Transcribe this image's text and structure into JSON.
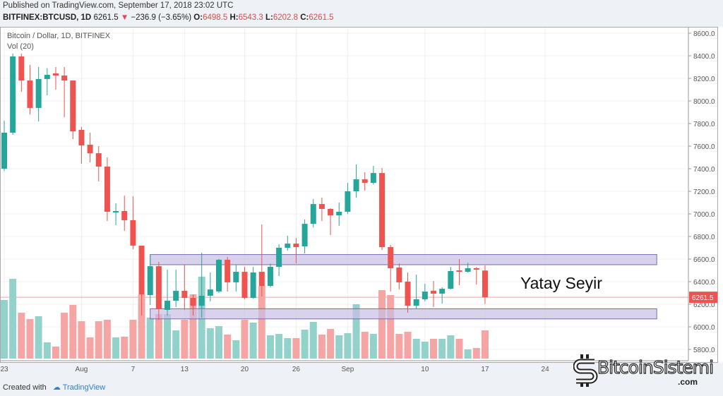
{
  "header": {
    "published": "Published on TradingView.com, September 17, 2018 23:02 UTC",
    "symbol": "BITFINEX:BTCUSD, 1D",
    "last": "6261.5",
    "change": "−236.9 (−3.65%)",
    "o_label": "O:",
    "o": "6498.5",
    "h_label": "H:",
    "h": "6543.3",
    "l_label": "L:",
    "l": "6202.8",
    "c_label": "C:",
    "c": "6261.5"
  },
  "legend": {
    "title": "Bitcoin / Dollar, 1D, BITFINEX",
    "vol": "Vol (20)"
  },
  "annotation": "Yatay Seyir",
  "footer": {
    "created": "Created with",
    "brand": "TradingView"
  },
  "logo": {
    "name": "BitcoinSistemi",
    "suffix": ".com"
  },
  "colors": {
    "up": "#26a69a",
    "down": "#ef5350",
    "up_vol": "#93d2cb",
    "down_vol": "#f5a6a4",
    "band": "#c9bfe6",
    "price_label": "#ef5350"
  },
  "chart_data": {
    "type": "candlestick",
    "title": "Bitcoin / Dollar, 1D, BITFINEX",
    "ylim": [
      5700,
      8650
    ],
    "yticks": [
      "8600.0",
      "8400.0",
      "8200.0",
      "8000.0",
      "7800.0",
      "7600.0",
      "7400.0",
      "7200.0",
      "7000.0",
      "6800.0",
      "6600.0",
      "6400.0",
      "6200.0",
      "6000.0",
      "5800.0"
    ],
    "xticks": [
      {
        "label": "23",
        "day": 0
      },
      {
        "label": "Aug",
        "day": 9
      },
      {
        "label": "7",
        "day": 15
      },
      {
        "label": "13",
        "day": 21
      },
      {
        "label": "20",
        "day": 28
      },
      {
        "label": "26",
        "day": 34
      },
      {
        "label": "Sep",
        "day": 40
      },
      {
        "label": "10",
        "day": 49
      },
      {
        "label": "17",
        "day": 56
      },
      {
        "label": "24",
        "day": 63
      }
    ],
    "current_price": "6261.5",
    "bands": [
      {
        "name": "upper",
        "from_day": 17,
        "to_day": 76,
        "low": 6550,
        "high": 6640
      },
      {
        "name": "lower",
        "from_day": 17,
        "to_day": 76,
        "low": 6070,
        "high": 6160
      }
    ],
    "candles": [
      [
        7400,
        7825,
        7380,
        7719,
        83
      ],
      [
        7719,
        8420,
        7700,
        8394,
        113
      ],
      [
        8394,
        8420,
        8081,
        8181,
        65
      ],
      [
        8181,
        8320,
        7880,
        7938,
        56
      ],
      [
        7938,
        8300,
        7819,
        8194,
        60
      ],
      [
        8194,
        8290,
        8050,
        8231,
        23
      ],
      [
        8244,
        8300,
        8100,
        8225,
        17
      ],
      [
        8225,
        8300,
        7856,
        8181,
        65
      ],
      [
        8181,
        8181,
        7662,
        7731,
        76
      ],
      [
        7744,
        7770,
        7444,
        7606,
        53
      ],
      [
        7612,
        7719,
        7456,
        7537,
        30
      ],
      [
        7537,
        7600,
        7287,
        7419,
        53
      ],
      [
        7419,
        7500,
        6937,
        7019,
        55
      ],
      [
        7012,
        7094,
        6900,
        7025,
        30
      ],
      [
        7025,
        7162,
        6850,
        6944,
        31
      ],
      [
        6944,
        7156,
        6687,
        6719,
        55
      ],
      [
        6719,
        6719,
        6100,
        6287,
        91
      ],
      [
        6281,
        6631,
        6194,
        6537,
        58
      ],
      [
        6537,
        6575,
        6062,
        6156,
        63
      ],
      [
        6150,
        6506,
        6100,
        6231,
        63
      ],
      [
        6231,
        6506,
        6175,
        6319,
        40
      ],
      [
        6319,
        6550,
        6150,
        6256,
        55
      ],
      [
        6256,
        6287,
        6100,
        6187,
        91
      ],
      [
        6187,
        6656,
        6081,
        6275,
        116
      ],
      [
        6275,
        6481,
        6225,
        6331,
        43
      ],
      [
        6313,
        6600,
        6300,
        6594,
        46
      ],
      [
        6594,
        6619,
        6312,
        6394,
        34
      ],
      [
        6394,
        6550,
        6312,
        6487,
        26
      ],
      [
        6487,
        6531,
        6244,
        6256,
        55
      ],
      [
        6256,
        6531,
        6250,
        6481,
        51
      ],
      [
        6487,
        6906,
        6269,
        6362,
        103
      ],
      [
        6362,
        6560,
        6350,
        6531,
        33
      ],
      [
        6531,
        6731,
        6450,
        6700,
        35
      ],
      [
        6700,
        6806,
        6675,
        6737,
        29
      ],
      [
        6737,
        6787,
        6562,
        6706,
        29
      ],
      [
        6712,
        6950,
        6650,
        6912,
        41
      ],
      [
        6912,
        7131,
        6880,
        7087,
        52
      ],
      [
        7087,
        7144,
        6937,
        7044,
        34
      ],
      [
        7044,
        7050,
        6812,
        6987,
        42
      ],
      [
        6987,
        7100,
        6894,
        7019,
        33
      ],
      [
        7019,
        7275,
        7000,
        7200,
        36
      ],
      [
        7200,
        7437,
        7144,
        7306,
        77
      ],
      [
        7306,
        7369,
        7206,
        7275,
        38
      ],
      [
        7275,
        7425,
        7260,
        7362,
        35
      ],
      [
        7362,
        7406,
        6680,
        6706,
        97
      ],
      [
        6706,
        6725,
        6312,
        6519,
        90
      ],
      [
        6525,
        6562,
        6331,
        6394,
        35
      ],
      [
        6400,
        6481,
        6125,
        6187,
        38
      ],
      [
        6187,
        6462,
        6156,
        6244,
        28
      ],
      [
        6244,
        6381,
        6225,
        6312,
        24
      ],
      [
        6319,
        6406,
        6175,
        6294,
        28
      ],
      [
        6294,
        6350,
        6206,
        6337,
        28
      ],
      [
        6337,
        6531,
        6330,
        6494,
        33
      ],
      [
        6500,
        6600,
        6369,
        6487,
        28
      ],
      [
        6487,
        6569,
        6480,
        6519,
        13
      ],
      [
        6519,
        6530,
        6375,
        6506,
        15
      ],
      [
        6498.5,
        6543.3,
        6202.8,
        6261.5,
        40
      ]
    ]
  }
}
